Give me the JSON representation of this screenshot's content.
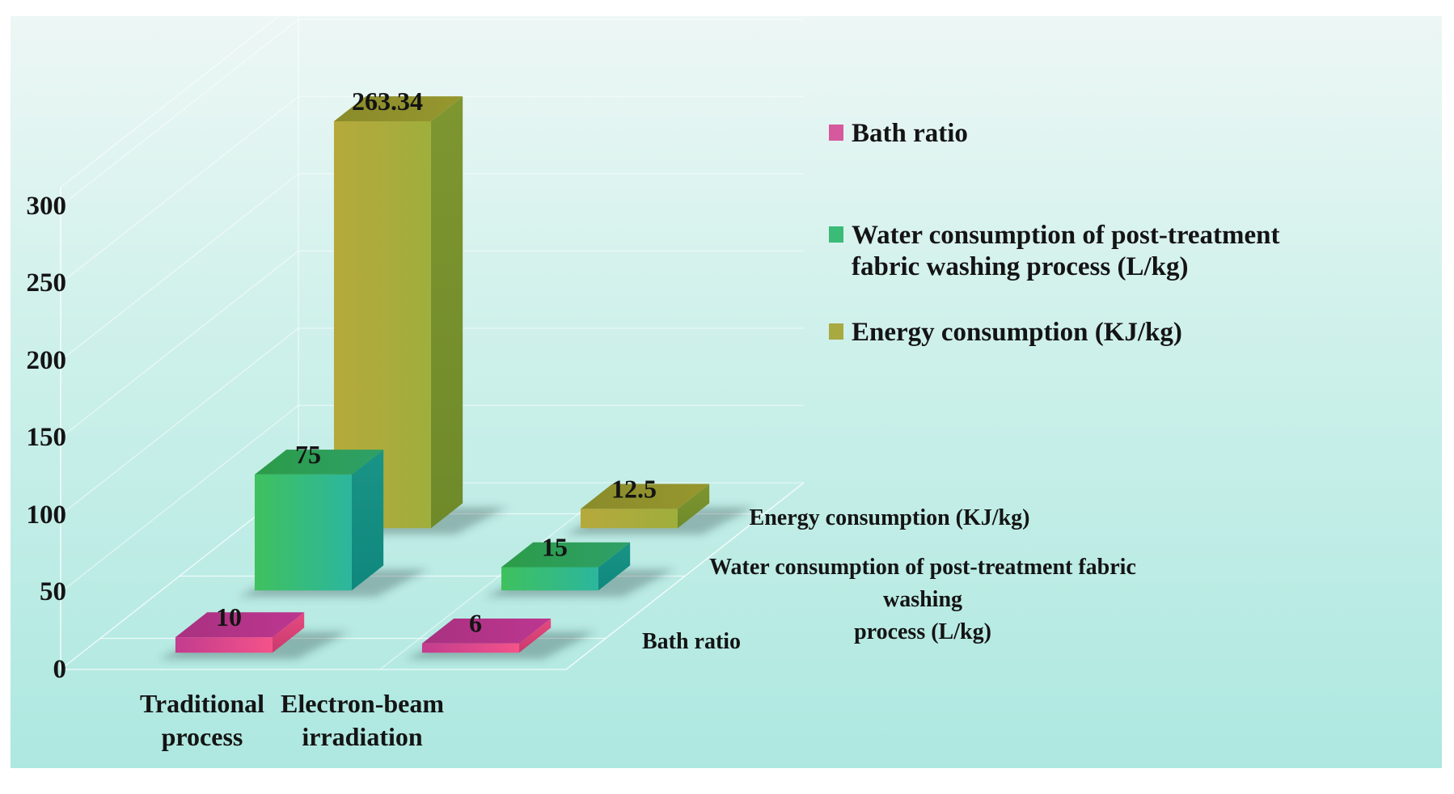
{
  "chart_data": {
    "type": "bar",
    "style": "3d-clustered-column",
    "title": "",
    "categories": [
      "Traditional process",
      "Electron-beam irradiation"
    ],
    "category_label_lines": [
      [
        "Traditional",
        "process"
      ],
      [
        "Electron-beam",
        "irradiation"
      ]
    ],
    "series": [
      {
        "name": "Bath ratio",
        "values": [
          10,
          6
        ],
        "value_labels": [
          "10",
          "6"
        ]
      },
      {
        "name": "Water consumption of post-treatment fabric washing process (L/kg)",
        "values": [
          75,
          15
        ],
        "value_labels": [
          "75",
          "15"
        ]
      },
      {
        "name": "Energy consumption (KJ/kg)",
        "values": [
          263.34,
          12.5
        ],
        "value_labels": [
          "263.34",
          "12.5"
        ]
      }
    ],
    "depth_axis_label_lines": [
      [
        "Bath ratio"
      ],
      [
        "Water consumption of post-treatment fabric washing",
        "process (L/kg)"
      ],
      [
        "Energy consumption (KJ/kg)"
      ]
    ],
    "value_axis": {
      "min": 0,
      "max": 300,
      "ticks": [
        300,
        250,
        200,
        150,
        100,
        50,
        0
      ],
      "grid": true
    },
    "legend": {
      "position": "right",
      "items": [
        {
          "label_lines": [
            "Bath ratio"
          ],
          "color": "#d6589d"
        },
        {
          "label_lines": [
            "Water consumption of post-treatment",
            "fabric washing process (L/kg)"
          ],
          "color": "#3abb78"
        },
        {
          "label_lines": [
            "Energy consumption (KJ/kg)"
          ],
          "color": "#a9a942"
        }
      ]
    },
    "colors": {
      "series": [
        {
          "name": "Bath ratio",
          "front_from": "#c23c8e",
          "front_to": "#f4538a",
          "top_from": "#a93180",
          "top_to": "#bc3790",
          "side_from": "#e54a81",
          "side_to": "#c93a6d"
        },
        {
          "name": "Water consumption",
          "front_from": "#3fc15e",
          "front_to": "#2cb69e",
          "top_from": "#2b9c48",
          "top_to": "#2fa068",
          "side_from": "#1a9486",
          "side_to": "#0f877d"
        },
        {
          "name": "Energy consumption",
          "front_from": "#b6a93c",
          "front_to": "#9fae3c",
          "top_from": "#8a8b2a",
          "top_to": "#97972f",
          "side_from": "#7e9630",
          "side_to": "#6f8a2a"
        }
      ],
      "background_top": "#edf7f5",
      "background_bottom": "#ade8e0",
      "gridline": "#ffffff",
      "text": "#141414"
    }
  }
}
